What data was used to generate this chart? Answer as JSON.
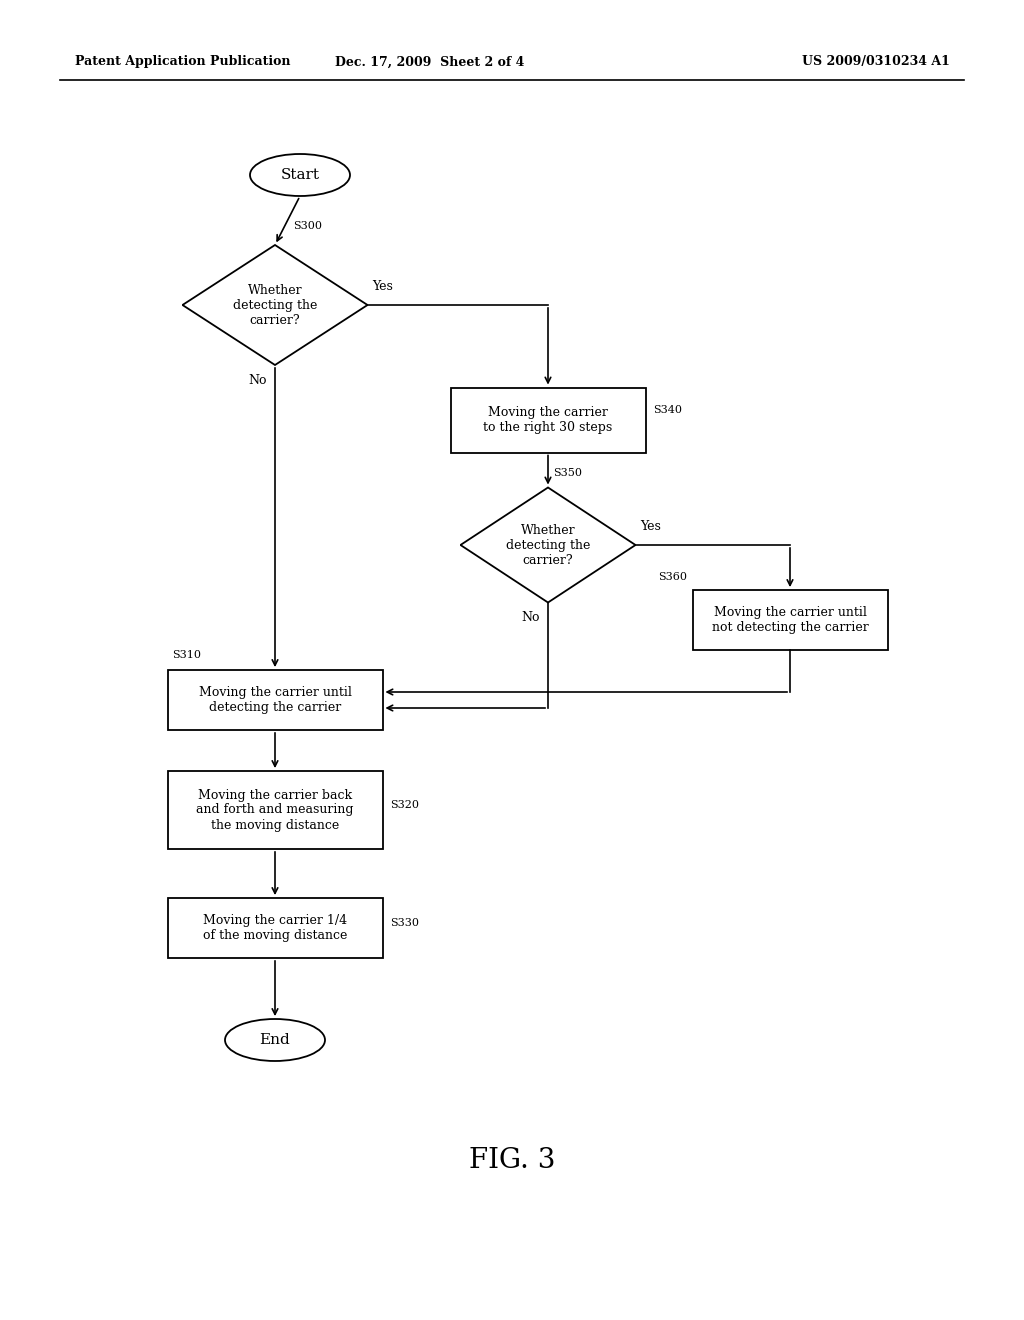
{
  "bg_color": "#ffffff",
  "header_left": "Patent Application Publication",
  "header_mid": "Dec. 17, 2009  Sheet 2 of 4",
  "header_right": "US 2009/0310234 A1",
  "figure_label": "FIG. 3",
  "font_size_node": 9,
  "font_size_header": 9,
  "font_size_label": 8,
  "font_size_fig": 20
}
